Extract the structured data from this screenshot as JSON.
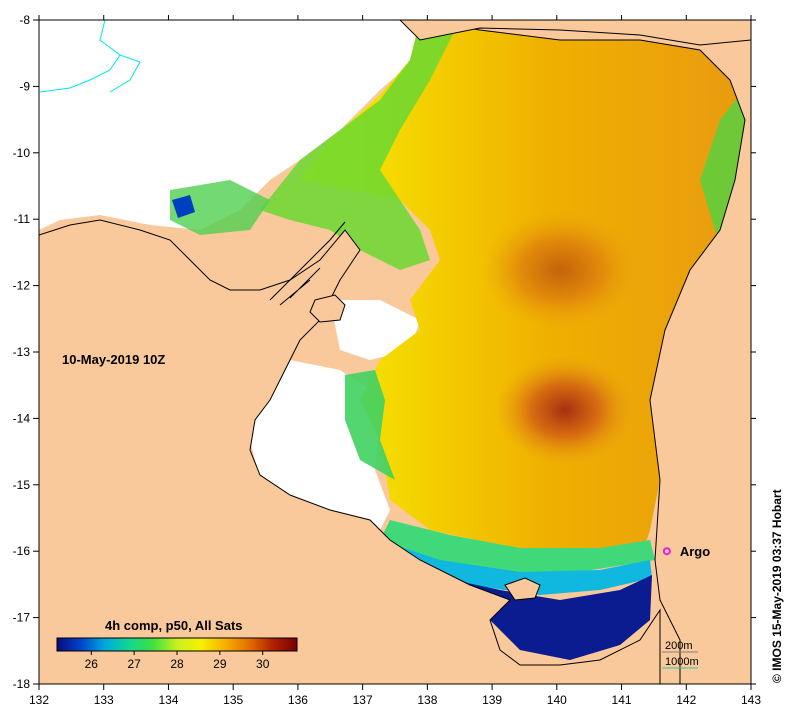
{
  "map": {
    "date_label": "10-May-2019 10Z",
    "composite_label": "4h comp, p50, All Sats",
    "credit": "© IMOS 15-May-2019 03:37 Hobart",
    "x_axis": {
      "ticks": [
        "132",
        "133",
        "134",
        "135",
        "136",
        "137",
        "138",
        "139",
        "140",
        "141",
        "142",
        "143"
      ]
    },
    "y_axis": {
      "ticks": [
        "-8",
        "-9",
        "-10",
        "-11",
        "-12",
        "-13",
        "-14",
        "-15",
        "-16",
        "-17",
        "-18"
      ]
    },
    "colorbar": {
      "ticks": [
        "26",
        "27",
        "28",
        "29",
        "30"
      ],
      "stops": [
        "#0a0a78",
        "#0046c8",
        "#00a8e0",
        "#10d890",
        "#40e040",
        "#c8f020",
        "#f8f000",
        "#f8b000",
        "#e07000",
        "#b02000",
        "#780000"
      ]
    },
    "markers": [
      {
        "label": "Argo",
        "lon": 141.7,
        "lat": -16.0,
        "color": "#e020e0"
      }
    ],
    "contours": [
      {
        "label": "200m",
        "color": "#808080"
      },
      {
        "label": "1000m",
        "color": "#30c8a0"
      }
    ],
    "colors": {
      "land": "#f9c89b",
      "nodata": "#ffffff",
      "rivers": "#00e8f0",
      "coast": "#000000"
    }
  }
}
